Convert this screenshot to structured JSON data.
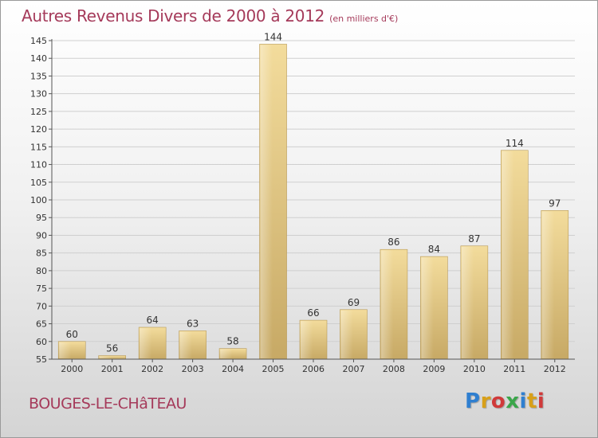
{
  "header": {
    "title": "Autres Revenus Divers de 2000 à 2012",
    "subtitle": "(en milliers d'€)"
  },
  "footer": {
    "place": "BOUGES-LE-CHâTEAU",
    "logo_text": "Proxiti",
    "logo_colors": [
      "#2f7fd0",
      "#d8a019",
      "#d03a3a",
      "#3aa64a",
      "#2f7fd0",
      "#d8a019",
      "#d03a3a"
    ]
  },
  "chart_data": {
    "type": "bar",
    "title": "Autres Revenus Divers de 2000 à 2012",
    "subtitle": "(en milliers d'€)",
    "categories": [
      "2000",
      "2001",
      "2002",
      "2003",
      "2004",
      "2005",
      "2006",
      "2007",
      "2008",
      "2009",
      "2010",
      "2011",
      "2012"
    ],
    "values": [
      60,
      56,
      64,
      63,
      58,
      144,
      66,
      69,
      86,
      84,
      87,
      114,
      97
    ],
    "ylim": [
      55,
      145
    ],
    "yticks": [
      55,
      60,
      65,
      70,
      75,
      80,
      85,
      90,
      95,
      100,
      105,
      110,
      115,
      120,
      125,
      130,
      135,
      140,
      145
    ],
    "xlabel": "",
    "ylabel": "",
    "grid": true,
    "legend": "none",
    "bar_color": "#e8cc88",
    "grid_color": "#cfcfcf"
  }
}
